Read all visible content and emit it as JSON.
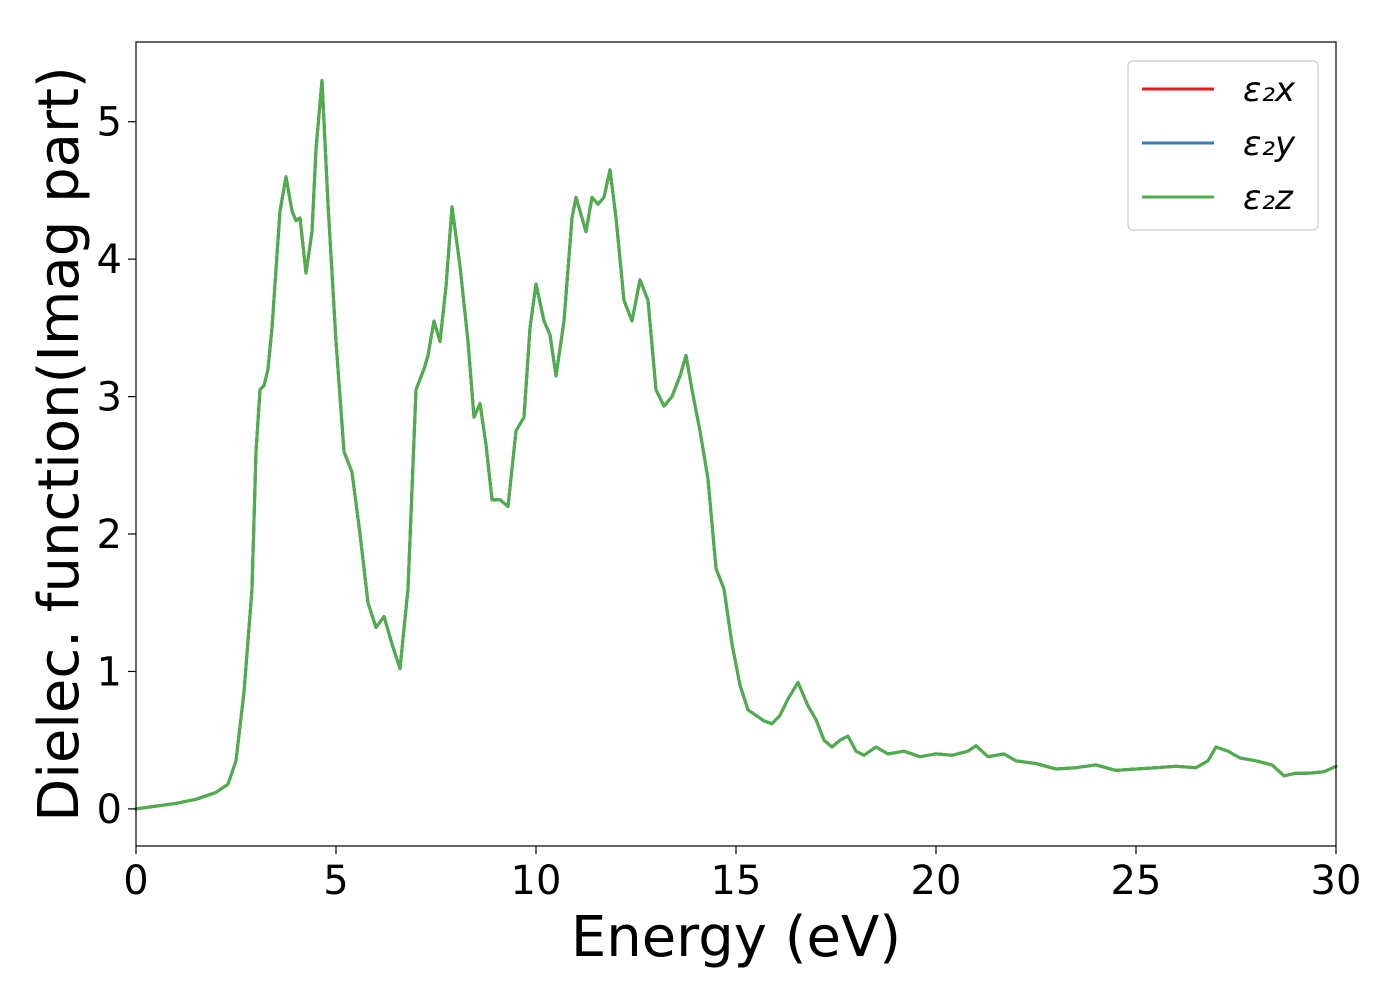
{
  "chart_data": {
    "type": "line",
    "title": "",
    "xlabel": "Energy (eV)",
    "ylabel": "Dielec. function(Imag part)",
    "xlim": [
      0,
      30
    ],
    "ylim": [
      -0.27,
      5.58
    ],
    "xticks": [
      0,
      5,
      10,
      15,
      20,
      25,
      30
    ],
    "xtick_labels": [
      "0",
      "5",
      "10",
      "15",
      "20",
      "25",
      "30"
    ],
    "yticks": [
      0,
      1,
      2,
      3,
      4,
      5
    ],
    "ytick_labels": [
      "0",
      "1",
      "2",
      "3",
      "4",
      "5"
    ],
    "grid": false,
    "legend_position": "top-right",
    "x": [
      0.0,
      0.5,
      1.0,
      1.5,
      2.0,
      2.3,
      2.5,
      2.7,
      2.9,
      3.0,
      3.1,
      3.2,
      3.3,
      3.4,
      3.6,
      3.75,
      3.9,
      4.0,
      4.1,
      4.25,
      4.4,
      4.5,
      4.65,
      4.8,
      5.0,
      5.2,
      5.4,
      5.6,
      5.8,
      6.0,
      6.2,
      6.4,
      6.6,
      6.8,
      7.0,
      7.2,
      7.3,
      7.45,
      7.6,
      7.75,
      7.9,
      8.1,
      8.3,
      8.45,
      8.6,
      8.75,
      8.9,
      9.1,
      9.3,
      9.5,
      9.7,
      9.85,
      10.0,
      10.2,
      10.35,
      10.5,
      10.7,
      10.9,
      11.0,
      11.1,
      11.25,
      11.4,
      11.55,
      11.7,
      11.85,
      12.0,
      12.2,
      12.4,
      12.6,
      12.8,
      13.0,
      13.2,
      13.4,
      13.6,
      13.75,
      13.9,
      14.1,
      14.3,
      14.5,
      14.7,
      14.9,
      15.1,
      15.3,
      15.5,
      15.7,
      15.9,
      16.1,
      16.3,
      16.55,
      16.8,
      17.0,
      17.2,
      17.4,
      17.6,
      17.8,
      18.0,
      18.2,
      18.5,
      18.8,
      19.2,
      19.6,
      20.0,
      20.4,
      20.8,
      21.0,
      21.3,
      21.7,
      22.0,
      22.5,
      23.0,
      23.5,
      24.0,
      24.5,
      25.0,
      25.5,
      26.0,
      26.5,
      26.8,
      27.0,
      27.3,
      27.6,
      28.0,
      28.4,
      28.7,
      29.0,
      29.3,
      29.7,
      30.0
    ],
    "series": [
      {
        "name": "ε₂x",
        "color": "#e41a1c",
        "values": [
          0.0,
          0.02,
          0.04,
          0.07,
          0.12,
          0.18,
          0.35,
          0.85,
          1.6,
          2.6,
          3.05,
          3.08,
          3.2,
          3.5,
          4.35,
          4.6,
          4.35,
          4.28,
          4.3,
          3.9,
          4.2,
          4.8,
          5.3,
          4.4,
          3.4,
          2.6,
          2.45,
          2.0,
          1.5,
          1.32,
          1.4,
          1.2,
          1.02,
          1.6,
          3.05,
          3.2,
          3.3,
          3.55,
          3.4,
          3.8,
          4.38,
          3.95,
          3.4,
          2.85,
          2.95,
          2.65,
          2.25,
          2.25,
          2.2,
          2.75,
          2.85,
          3.5,
          3.82,
          3.55,
          3.45,
          3.15,
          3.55,
          4.3,
          4.45,
          4.35,
          4.2,
          4.45,
          4.4,
          4.45,
          4.65,
          4.3,
          3.7,
          3.55,
          3.85,
          3.7,
          3.05,
          2.93,
          3.0,
          3.15,
          3.3,
          3.05,
          2.75,
          2.4,
          1.75,
          1.6,
          1.2,
          0.9,
          0.72,
          0.68,
          0.64,
          0.62,
          0.68,
          0.8,
          0.92,
          0.75,
          0.65,
          0.5,
          0.45,
          0.5,
          0.53,
          0.42,
          0.39,
          0.45,
          0.4,
          0.42,
          0.38,
          0.4,
          0.39,
          0.42,
          0.46,
          0.38,
          0.4,
          0.35,
          0.33,
          0.29,
          0.3,
          0.32,
          0.28,
          0.29,
          0.3,
          0.31,
          0.3,
          0.35,
          0.45,
          0.42,
          0.37,
          0.35,
          0.32,
          0.24,
          0.26,
          0.26,
          0.27,
          0.31
        ]
      },
      {
        "name": "ε₂y",
        "color": "#377eb8",
        "values": [
          0.0,
          0.02,
          0.04,
          0.07,
          0.12,
          0.18,
          0.35,
          0.85,
          1.6,
          2.6,
          3.05,
          3.08,
          3.2,
          3.5,
          4.35,
          4.6,
          4.35,
          4.28,
          4.3,
          3.9,
          4.2,
          4.8,
          5.3,
          4.4,
          3.4,
          2.6,
          2.45,
          2.0,
          1.5,
          1.32,
          1.4,
          1.2,
          1.02,
          1.6,
          3.05,
          3.2,
          3.3,
          3.55,
          3.4,
          3.8,
          4.38,
          3.95,
          3.4,
          2.85,
          2.95,
          2.65,
          2.25,
          2.25,
          2.2,
          2.75,
          2.85,
          3.5,
          3.82,
          3.55,
          3.45,
          3.15,
          3.55,
          4.3,
          4.45,
          4.35,
          4.2,
          4.45,
          4.4,
          4.45,
          4.65,
          4.3,
          3.7,
          3.55,
          3.85,
          3.7,
          3.05,
          2.93,
          3.0,
          3.15,
          3.3,
          3.05,
          2.75,
          2.4,
          1.75,
          1.6,
          1.2,
          0.9,
          0.72,
          0.68,
          0.64,
          0.62,
          0.68,
          0.8,
          0.92,
          0.75,
          0.65,
          0.5,
          0.45,
          0.5,
          0.53,
          0.42,
          0.39,
          0.45,
          0.4,
          0.42,
          0.38,
          0.4,
          0.39,
          0.42,
          0.46,
          0.38,
          0.4,
          0.35,
          0.33,
          0.29,
          0.3,
          0.32,
          0.28,
          0.29,
          0.3,
          0.31,
          0.3,
          0.35,
          0.45,
          0.42,
          0.37,
          0.35,
          0.32,
          0.24,
          0.26,
          0.26,
          0.27,
          0.31
        ]
      },
      {
        "name": "ε₂z",
        "color": "#4daf4a",
        "values": [
          0.0,
          0.02,
          0.04,
          0.07,
          0.12,
          0.18,
          0.35,
          0.85,
          1.6,
          2.6,
          3.05,
          3.08,
          3.2,
          3.5,
          4.35,
          4.6,
          4.35,
          4.28,
          4.3,
          3.9,
          4.2,
          4.8,
          5.3,
          4.4,
          3.4,
          2.6,
          2.45,
          2.0,
          1.5,
          1.32,
          1.4,
          1.2,
          1.02,
          1.6,
          3.05,
          3.2,
          3.3,
          3.55,
          3.4,
          3.8,
          4.38,
          3.95,
          3.4,
          2.85,
          2.95,
          2.65,
          2.25,
          2.25,
          2.2,
          2.75,
          2.85,
          3.5,
          3.82,
          3.55,
          3.45,
          3.15,
          3.55,
          4.3,
          4.45,
          4.35,
          4.2,
          4.45,
          4.4,
          4.45,
          4.65,
          4.3,
          3.7,
          3.55,
          3.85,
          3.7,
          3.05,
          2.93,
          3.0,
          3.15,
          3.3,
          3.05,
          2.75,
          2.4,
          1.75,
          1.6,
          1.2,
          0.9,
          0.72,
          0.68,
          0.64,
          0.62,
          0.68,
          0.8,
          0.92,
          0.75,
          0.65,
          0.5,
          0.45,
          0.5,
          0.53,
          0.42,
          0.39,
          0.45,
          0.4,
          0.42,
          0.38,
          0.4,
          0.39,
          0.42,
          0.46,
          0.38,
          0.4,
          0.35,
          0.33,
          0.29,
          0.3,
          0.32,
          0.28,
          0.29,
          0.3,
          0.31,
          0.3,
          0.35,
          0.45,
          0.42,
          0.37,
          0.35,
          0.32,
          0.24,
          0.26,
          0.26,
          0.27,
          0.31
        ]
      }
    ]
  }
}
